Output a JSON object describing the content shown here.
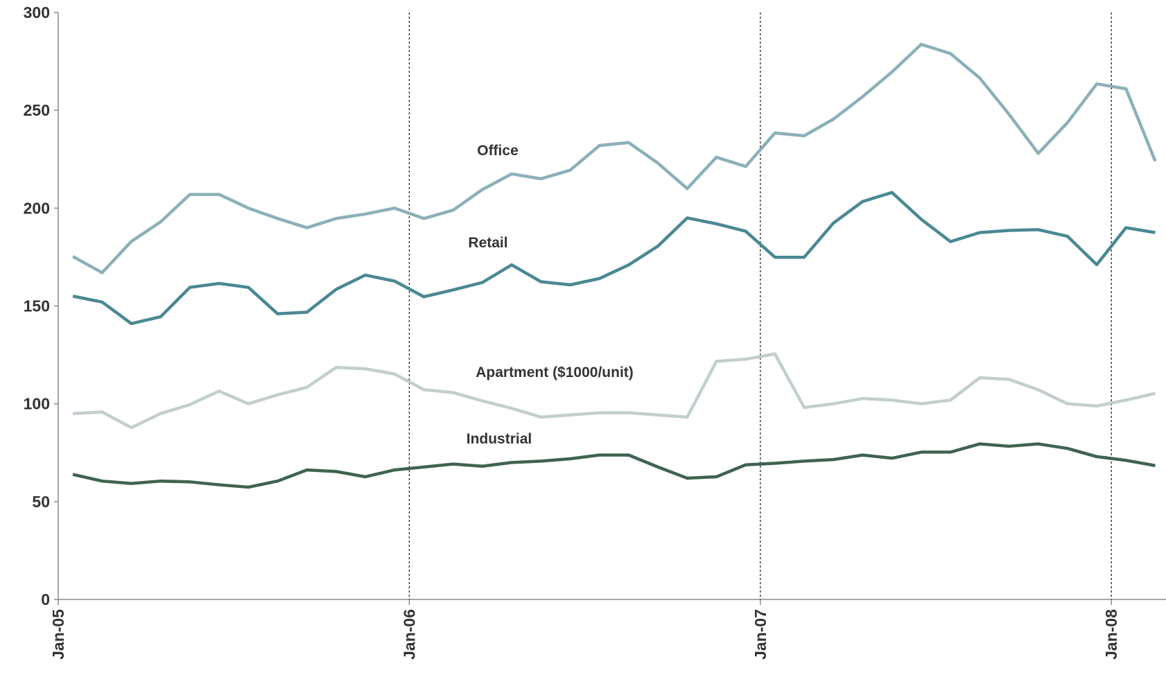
{
  "chart_data": {
    "type": "line",
    "x": [
      0.5,
      1.5,
      2.5,
      3.5,
      4.5,
      5.5,
      6.5,
      7.5,
      8.5,
      9.5,
      10.5,
      11.5,
      12.5,
      13.5,
      14.5,
      15.5,
      16.5,
      17.5,
      18.5,
      19.5,
      20.5,
      21.5,
      22.5,
      23.5,
      24.5,
      25.5,
      26.5,
      27.5,
      28.5,
      29.5,
      30.5,
      31.5,
      32.5,
      33.5,
      34.5,
      35.5,
      36.5,
      37.5
    ],
    "xlim": [
      0,
      37.9
    ],
    "xticks": [
      {
        "value": 0,
        "label": "Jan-05"
      },
      {
        "value": 12,
        "label": "Jan-06"
      },
      {
        "value": 24,
        "label": "Jan-07"
      },
      {
        "value": 36,
        "label": "Jan-08"
      }
    ],
    "ylim": [
      0,
      300
    ],
    "yticks": [
      0,
      50,
      100,
      150,
      200,
      250,
      300
    ],
    "grid": "x",
    "series": [
      {
        "name": "Office",
        "color": "#8bb0b8",
        "values": [
          175.3,
          167,
          183,
          193,
          207,
          207,
          200,
          194.7,
          190,
          194.7,
          197,
          200,
          194.7,
          199,
          209.5,
          217.5,
          215,
          219.4,
          232,
          233.5,
          223,
          210,
          226,
          221.3,
          238.4,
          237,
          245.5,
          257,
          269.6,
          283.7,
          279,
          266.5,
          248,
          228,
          243.7,
          263.5,
          261,
          224
        ]
      },
      {
        "name": "Retail",
        "color": "#4a8894",
        "values": [
          155,
          152,
          141,
          144.5,
          159.5,
          161.5,
          159.5,
          146,
          146.8,
          158.5,
          165.8,
          162.7,
          154.7,
          158.2,
          162,
          171,
          162.4,
          160.8,
          164,
          171,
          180.6,
          195,
          192,
          188.2,
          174.9,
          174.9,
          192.4,
          203.4,
          208,
          194.3,
          182.9,
          187.5,
          188.6,
          189,
          185.6,
          171.1,
          190,
          187.5
        ]
      },
      {
        "name": "Apartment ($1000/unit)",
        "color": "#c2cfcc",
        "values": [
          95,
          95.8,
          87.8,
          95,
          99.6,
          106.5,
          100,
          104.6,
          108.4,
          118.6,
          117.9,
          115.2,
          107.2,
          105.7,
          101.5,
          97.7,
          93.2,
          94.3,
          95.4,
          95.4,
          94.3,
          93.2,
          121.7,
          122.8,
          125.5,
          98.1,
          100,
          102.7,
          101.9,
          100,
          101.9,
          113.3,
          112.5,
          107.2,
          100,
          98.9,
          101.9,
          105.3
        ]
      },
      {
        "name": "Industrial",
        "color": "#3f6350",
        "values": [
          63.9,
          60.5,
          59.3,
          60.5,
          60.1,
          58.6,
          57.4,
          60.5,
          66.2,
          65.4,
          62.7,
          66.2,
          67.7,
          69.2,
          68.1,
          70,
          70.7,
          71.9,
          73.8,
          73.8,
          67.7,
          62,
          62.7,
          68.8,
          69.6,
          70.7,
          71.5,
          73.8,
          72.2,
          75.3,
          75.3,
          79.5,
          78.3,
          79.5,
          77.2,
          73,
          71.1,
          68.4
        ]
      }
    ]
  }
}
